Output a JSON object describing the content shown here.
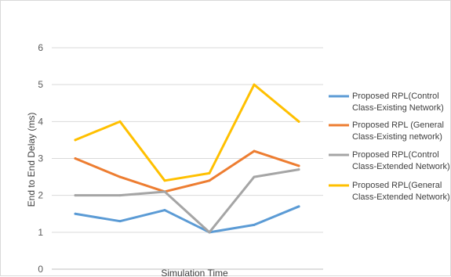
{
  "chart_data": {
    "type": "line",
    "title": "",
    "xlabel": "Simulation Time",
    "ylabel": "End to End Delay (ms)",
    "ylim": [
      0,
      6
    ],
    "yticks": [
      0,
      1,
      2,
      3,
      4,
      5,
      6
    ],
    "grid": true,
    "legend_position": "right",
    "x": [
      1,
      2,
      3,
      4,
      5,
      6
    ],
    "series": [
      {
        "name_lines": [
          "Proposed RPL(Control",
          "Class-Existing Network)"
        ],
        "color": "#5b9bd5",
        "values": [
          1.5,
          1.3,
          1.6,
          1.0,
          1.2,
          1.7
        ]
      },
      {
        "name_lines": [
          "Proposed RPL (General",
          "Class-Existing network)"
        ],
        "color": "#ed7d31",
        "values": [
          3.0,
          2.5,
          2.1,
          2.4,
          3.2,
          2.8
        ]
      },
      {
        "name_lines": [
          "Proposed RPL(Control",
          "Class-Extended Network)"
        ],
        "color": "#a5a5a5",
        "values": [
          2.0,
          2.0,
          2.1,
          1.0,
          2.5,
          2.7
        ]
      },
      {
        "name_lines": [
          "Proposed RPL(General",
          "Class-Extended Network)"
        ],
        "color": "#ffc000",
        "values": [
          3.5,
          4.0,
          2.4,
          2.6,
          5.0,
          4.0
        ]
      }
    ]
  }
}
